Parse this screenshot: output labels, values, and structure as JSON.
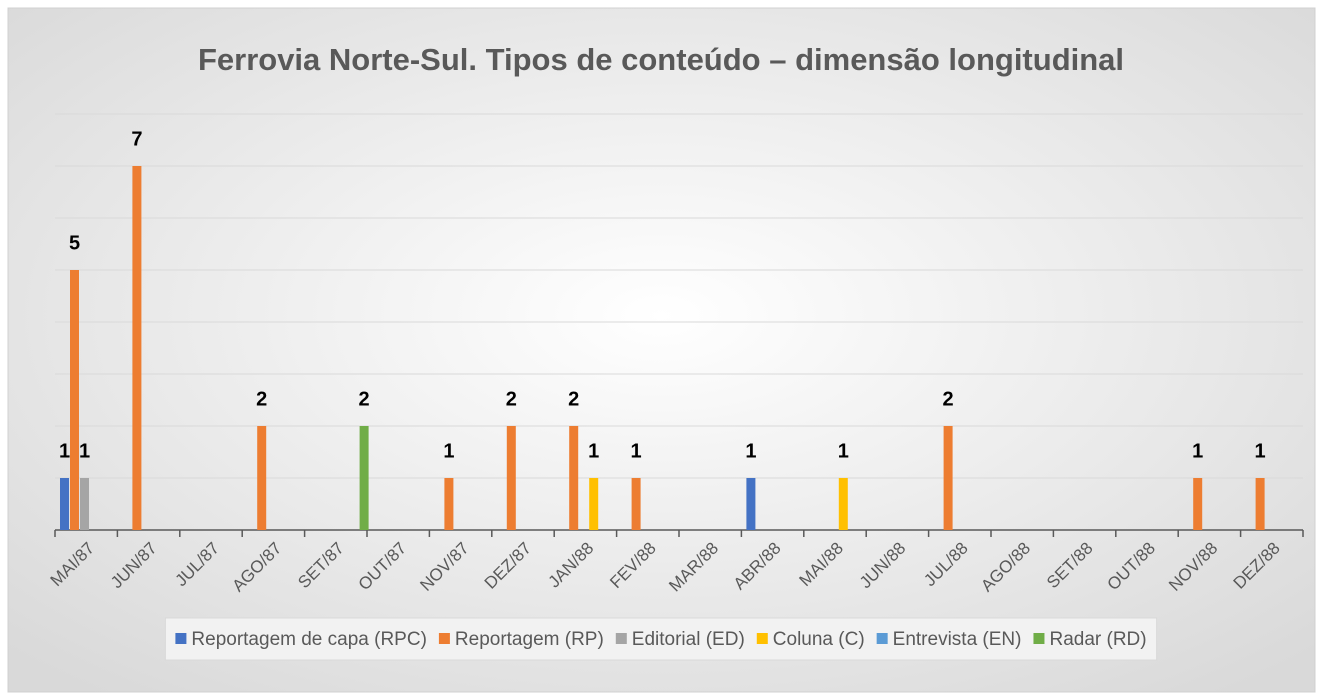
{
  "chart_data": {
    "type": "bar",
    "title": "Ferrovia Norte-Sul. Tipos de conteúdo – dimensão longitudinal",
    "categories": [
      "MAI/87",
      "JUN/87",
      "JUL/87",
      "AGO/87",
      "SET/87",
      "OUT/87",
      "NOV/87",
      "DEZ/87",
      "JAN/88",
      "FEV/88",
      "MAR/88",
      "ABR/88",
      "MAI/88",
      "JUN/88",
      "JUL/88",
      "AGO/88",
      "SET/88",
      "OUT/88",
      "NOV/88",
      "DEZ/88"
    ],
    "series": [
      {
        "name": "Reportagem de capa (RPC)",
        "color": "#4472c4",
        "values": [
          1,
          null,
          null,
          null,
          null,
          null,
          null,
          null,
          null,
          null,
          null,
          1,
          null,
          null,
          null,
          null,
          null,
          null,
          null,
          null
        ]
      },
      {
        "name": "Reportagem (RP)",
        "color": "#ed7d31",
        "values": [
          5,
          7,
          null,
          2,
          null,
          null,
          1,
          2,
          2,
          1,
          null,
          null,
          null,
          null,
          2,
          null,
          null,
          null,
          1,
          1
        ]
      },
      {
        "name": "Editorial (ED)",
        "color": "#a5a5a5",
        "values": [
          1,
          null,
          null,
          null,
          null,
          null,
          null,
          null,
          null,
          null,
          null,
          null,
          null,
          null,
          null,
          null,
          null,
          null,
          null,
          null
        ]
      },
      {
        "name": "Coluna (C)",
        "color": "#ffc000",
        "values": [
          null,
          null,
          null,
          null,
          null,
          null,
          null,
          null,
          1,
          null,
          null,
          null,
          1,
          null,
          null,
          null,
          null,
          null,
          null,
          null
        ]
      },
      {
        "name": "Entrevista (EN)",
        "color": "#5b9bd5",
        "values": [
          null,
          null,
          null,
          null,
          null,
          null,
          null,
          null,
          null,
          null,
          null,
          null,
          null,
          null,
          null,
          null,
          null,
          null,
          null,
          null
        ]
      },
      {
        "name": "Radar (RD)",
        "color": "#70ad47",
        "values": [
          null,
          null,
          null,
          null,
          2,
          null,
          null,
          null,
          null,
          null,
          null,
          null,
          null,
          null,
          null,
          null,
          null,
          null,
          null,
          null
        ]
      }
    ],
    "ylim": [
      0,
      8
    ],
    "yticks": [
      0,
      1,
      2,
      3,
      4,
      5,
      6,
      7,
      8
    ],
    "ytick_labels": false,
    "grid": true,
    "legend": "bottom"
  }
}
